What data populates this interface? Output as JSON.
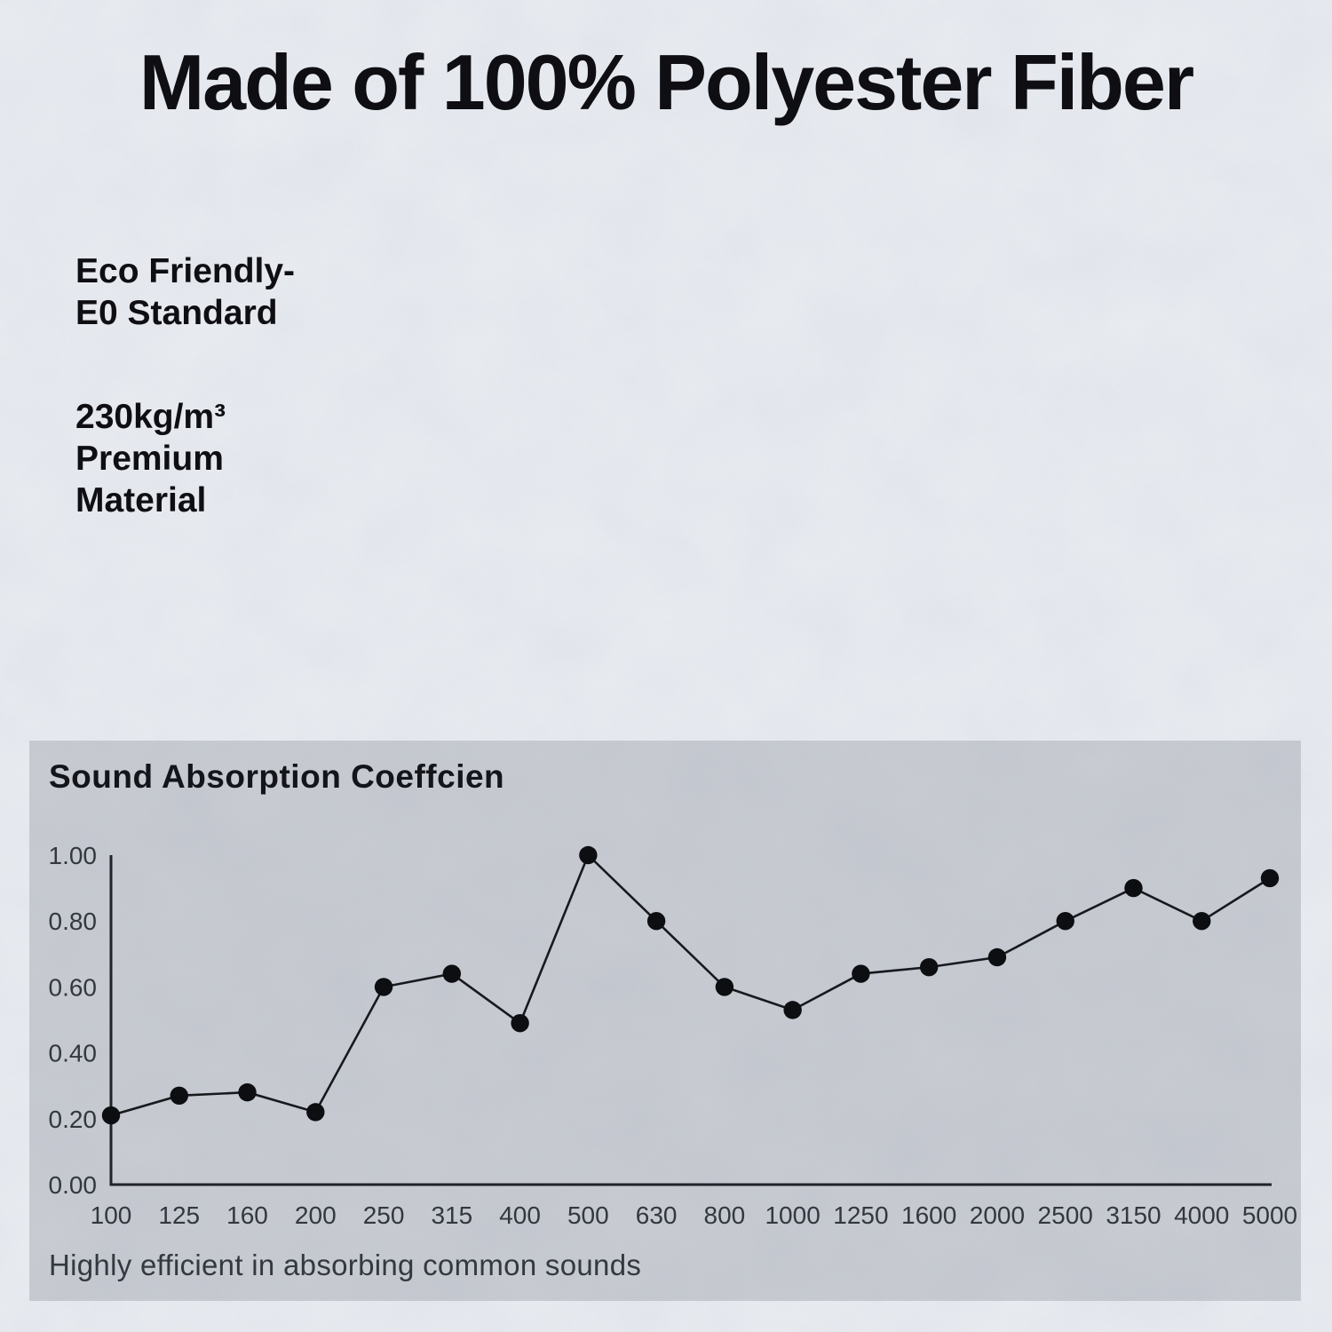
{
  "page": {
    "title": "Made of 100% Polyester Fiber",
    "notes": [
      {
        "lines": [
          "Eco Friendly-",
          "E0 Standard"
        ]
      },
      {
        "lines": [
          "230kg/m³",
          "Premium",
          "Material"
        ]
      }
    ]
  },
  "chart_panel": {
    "title": "Sound Absorption Coeffcien",
    "caption": "Highly efficient in absorbing common sounds"
  },
  "chart_data": {
    "type": "line",
    "title": "Sound Absorption Coeffcien",
    "categories": [
      "100",
      "125",
      "160",
      "200",
      "250",
      "315",
      "400",
      "500",
      "630",
      "800",
      "1000",
      "1250",
      "1600",
      "2000",
      "2500",
      "3150",
      "4000",
      "5000"
    ],
    "values": [
      0.21,
      0.27,
      0.28,
      0.22,
      0.6,
      0.64,
      0.49,
      1.0,
      0.8,
      0.6,
      0.53,
      0.64,
      0.66,
      0.69,
      0.8,
      0.9,
      0.8,
      0.93
    ],
    "xlabel": "",
    "ylabel": "",
    "ylim": [
      0,
      1.0
    ],
    "y_ticks": [
      0.0,
      0.2,
      0.4,
      0.6,
      0.8,
      1.0
    ],
    "y_tick_labels": [
      "0.00",
      "0.20",
      "0.40",
      "0.60",
      "0.80",
      "1.00"
    ],
    "grid": false,
    "legend": false,
    "marker": "circle",
    "line_color": "#17191d",
    "marker_color": "#0d0e11",
    "axis_color": "#202329",
    "tick_label_color": "#33373e"
  },
  "colors": {
    "background": "#d6dbe4",
    "panel": "rgba(108,113,124,0.26)",
    "ink": "#0e0e13",
    "panel_ink": "#14151a",
    "caption_ink": "#34383f"
  }
}
